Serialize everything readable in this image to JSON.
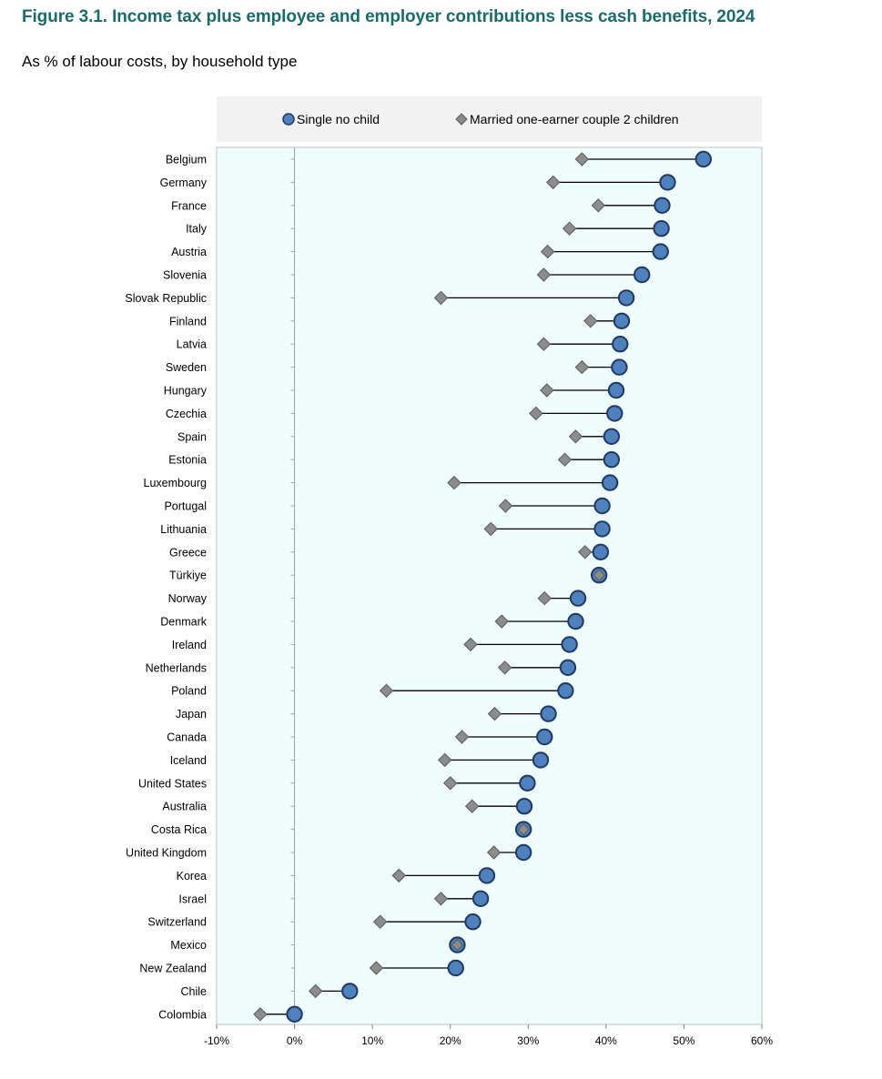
{
  "title": "Figure 3.1. Income tax plus employee and employer contributions less cash benefits, 2024",
  "subtitle": "As % of labour costs, by household type",
  "colors": {
    "title": "#1b6b6b",
    "plot_background": "#f0fdfd",
    "legend_background": "#f2f2f2",
    "single": "#4f81bd",
    "single_border": "#1f3864",
    "married": "#8c8c8c",
    "married_border": "#595959",
    "connector": "#000000"
  },
  "chart_data": {
    "type": "dumbbell",
    "title": "Figure 3.1. Income tax plus employee and employer contributions less cash benefits, 2024",
    "subtitle": "As % of labour costs, by household type",
    "xlim": [
      -10,
      60
    ],
    "ticks": [
      -10,
      0,
      10,
      20,
      30,
      40,
      50,
      60
    ],
    "tick_labels": [
      "-10%",
      "0%",
      "10%",
      "20%",
      "30%",
      "40%",
      "50%",
      "60%"
    ],
    "legend_position": "top",
    "series": [
      {
        "name": "Single no child",
        "marker": "circle"
      },
      {
        "name": "Married one-earner couple 2 children",
        "marker": "diamond"
      }
    ],
    "categories": [
      "Belgium",
      "Germany",
      "France",
      "Italy",
      "Austria",
      "Slovenia",
      "Slovak Republic",
      "Finland",
      "Latvia",
      "Sweden",
      "Hungary",
      "Czechia",
      "Spain",
      "Estonia",
      "Luxembourg",
      "Portugal",
      "Lithuania",
      "Greece",
      "Türkiye",
      "Norway",
      "Denmark",
      "Ireland",
      "Netherlands",
      "Poland",
      "Japan",
      "Canada",
      "Iceland",
      "United States",
      "Australia",
      "Costa Rica",
      "United Kingdom",
      "Korea",
      "Israel",
      "Switzerland",
      "Mexico",
      "New Zealand",
      "Chile",
      "Colombia"
    ],
    "single": [
      52.5,
      47.9,
      47.2,
      47.1,
      47.0,
      44.6,
      42.6,
      42.0,
      41.8,
      41.7,
      41.3,
      41.1,
      40.7,
      40.7,
      40.5,
      39.5,
      39.5,
      39.3,
      39.1,
      36.4,
      36.1,
      35.3,
      35.1,
      34.8,
      32.6,
      32.1,
      31.6,
      29.9,
      29.5,
      29.4,
      29.4,
      24.7,
      23.9,
      22.9,
      20.9,
      20.7,
      7.1,
      0.0
    ],
    "married": [
      36.9,
      33.2,
      39.0,
      35.3,
      32.5,
      32.0,
      18.8,
      38.0,
      32.0,
      36.9,
      32.4,
      31.0,
      36.1,
      34.7,
      20.5,
      27.1,
      25.2,
      37.3,
      39.1,
      32.1,
      26.6,
      22.6,
      27.0,
      11.8,
      25.7,
      21.5,
      19.3,
      20.0,
      22.8,
      29.4,
      25.6,
      13.4,
      18.8,
      11.0,
      20.9,
      10.5,
      2.7,
      -4.4
    ]
  }
}
